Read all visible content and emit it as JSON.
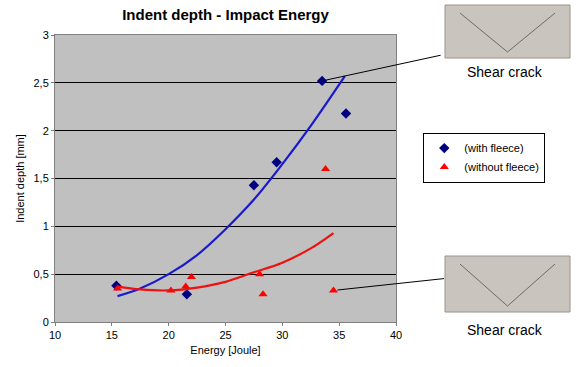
{
  "chart_data": {
    "type": "scatter",
    "title": "Indent depth - Impact Energy",
    "x_label": "Energy [Joule]",
    "y_label": "Indent depth [mm]",
    "xlim": [
      10,
      40
    ],
    "xticks": [
      10,
      15,
      20,
      25,
      30,
      35,
      40
    ],
    "ylim": [
      0,
      3
    ],
    "yticks": [
      0,
      {
        "value": 0.5,
        "label": "0,5"
      },
      1,
      {
        "value": 1.5,
        "label": "1,5"
      },
      2,
      {
        "value": 2.5,
        "label": "2,5"
      },
      3
    ],
    "grid": true,
    "legend": "right",
    "series": [
      {
        "name": "(with fleece)",
        "type": "scatter",
        "color": "#000080",
        "marker": "diamond",
        "x": [
          15.4,
          21.6,
          27.5,
          29.5,
          33.5,
          35.6
        ],
        "values": [
          0.38,
          0.29,
          1.43,
          1.67,
          2.52,
          2.18
        ]
      },
      {
        "name": "(without fleece)",
        "type": "scatter",
        "color": "#ff0000",
        "marker": "triangle-up",
        "x": [
          15.5,
          20.2,
          21.5,
          22.0,
          28.0,
          28.3,
          33.8,
          34.5
        ],
        "values": [
          0.35,
          0.33,
          0.37,
          0.47,
          0.5,
          0.29,
          1.6,
          0.33
        ]
      },
      {
        "type": "line",
        "color": "#1a1acc",
        "line_style": "solid",
        "x": [
          15.5,
          17.5,
          20,
          22.5,
          25,
          27.5,
          30,
          32.5,
          35.5
        ],
        "values": [
          0.27,
          0.35,
          0.5,
          0.7,
          0.97,
          1.28,
          1.65,
          2.05,
          2.57
        ]
      },
      {
        "type": "line",
        "color": "#ee1111",
        "line_style": "solid",
        "x": [
          15.5,
          17.5,
          20,
          22.5,
          25,
          27.5,
          30,
          32.5,
          34.5
        ],
        "values": [
          0.37,
          0.34,
          0.33,
          0.36,
          0.42,
          0.52,
          0.62,
          0.77,
          0.93
        ]
      }
    ],
    "annotations": [
      {
        "text": "Shear crack",
        "x": 33.5,
        "y": 2.52
      },
      {
        "text": "Shear crack",
        "x": 34.5,
        "y": 0.33
      }
    ]
  }
}
